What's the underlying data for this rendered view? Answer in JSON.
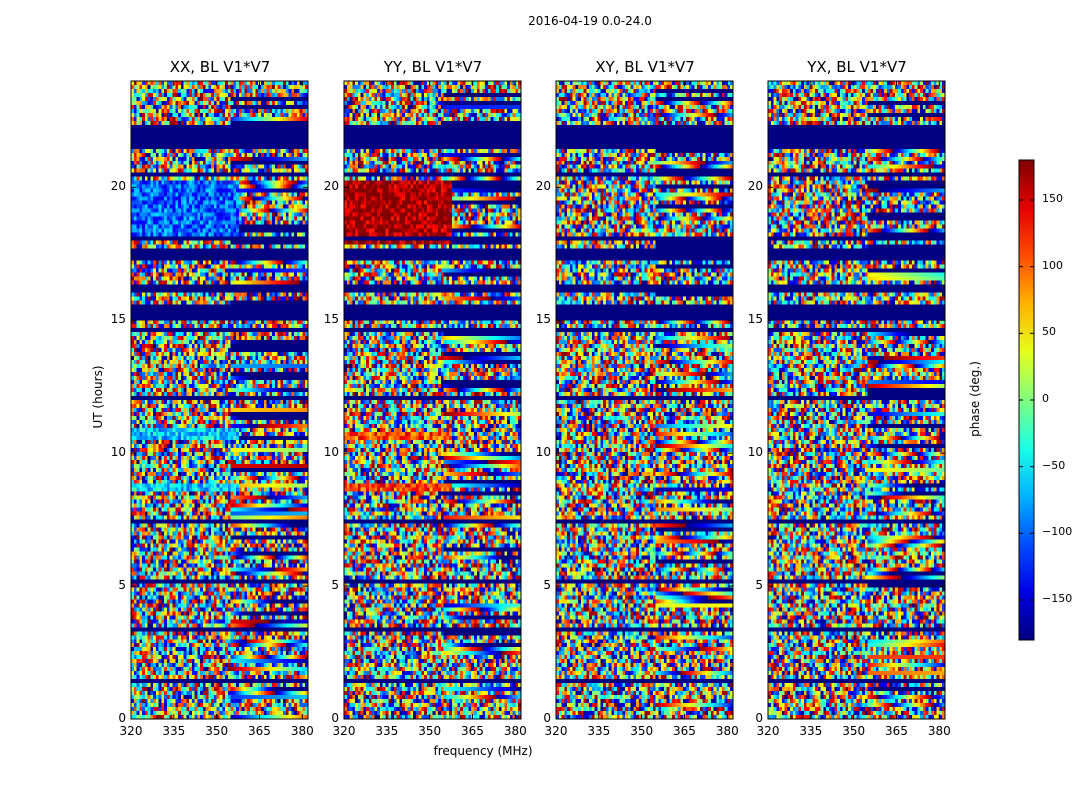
{
  "chart_data": {
    "type": "heatmap",
    "title": "2016-04-19 0.0-24.0",
    "xlabel": "frequency (MHz)",
    "ylabel": "UT (hours)",
    "colorbar_label": "phase (deg.)",
    "colormap": "jet",
    "xlim": [
      320,
      382
    ],
    "ylim": [
      0,
      24
    ],
    "xticks": [
      320,
      335,
      350,
      365,
      380
    ],
    "yticks": [
      0,
      5,
      10,
      15,
      20
    ],
    "clim": [
      -180,
      180
    ],
    "colorbar_ticks": [
      -150,
      -100,
      -50,
      0,
      50,
      100,
      150
    ],
    "colorbar_tick_labels": [
      "−150",
      "−100",
      "−50",
      "0",
      "50",
      "100",
      "150"
    ],
    "panels": [
      {
        "title": "XX, BL V1*V7",
        "uniform_bands": [
          {
            "ut": [
              18.2,
              20.2
            ],
            "phase": -100
          },
          {
            "ut": [
              10.5,
              10.9
            ],
            "phase": -60
          },
          {
            "ut": [
              8.6,
              8.9
            ],
            "phase": -60
          }
        ]
      },
      {
        "title": "YY, BL V1*V7",
        "uniform_bands": [
          {
            "ut": [
              17.8,
              20.3
            ],
            "phase": 170
          },
          {
            "ut": [
              10.5,
              10.8
            ],
            "phase": 110
          },
          {
            "ut": [
              8.5,
              8.9
            ],
            "phase": 110
          }
        ]
      },
      {
        "title": "XY, BL V1*V7",
        "uniform_bands": []
      },
      {
        "title": "YX, BL V1*V7",
        "uniform_bands": []
      }
    ],
    "flagged_ut_bands": [
      [
        21.5,
        22.4
      ],
      [
        20.4,
        20.6
      ],
      [
        17.2,
        17.7
      ],
      [
        16.1,
        16.3
      ],
      [
        15.0,
        15.6
      ],
      [
        14.5,
        14.7
      ],
      [
        12.0,
        12.1
      ],
      [
        7.4,
        7.5
      ],
      [
        5.1,
        5.2
      ],
      [
        3.3,
        3.4
      ],
      [
        1.3,
        1.5
      ],
      [
        22.9,
        23.0
      ],
      [
        18.0,
        18.1
      ]
    ]
  }
}
